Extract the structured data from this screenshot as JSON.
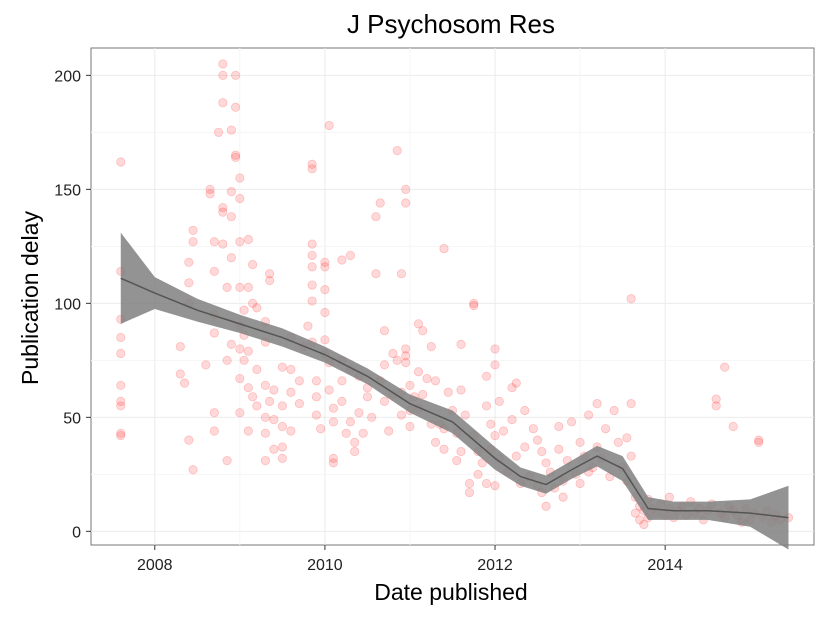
{
  "chart_data": {
    "type": "scatter",
    "title": "J Psychosom Res",
    "xlabel": "Date published",
    "ylabel": "Publication delay",
    "xlim": [
      2007.25,
      2015.75
    ],
    "ylim": [
      -6,
      212
    ],
    "x_ticks": [
      2008,
      2010,
      2012,
      2014
    ],
    "x_tick_labels": [
      "2008",
      "2010",
      "2012",
      "2014"
    ],
    "y_ticks": [
      0,
      50,
      100,
      150,
      200
    ],
    "y_tick_labels": [
      "0",
      "50",
      "100",
      "150",
      "200"
    ],
    "grid": true,
    "point_color": "#ff0000",
    "point_alpha": 0.15,
    "smooth_color": "#555555",
    "smooth_band_color": "#808080",
    "points": [
      [
        2007.6,
        162
      ],
      [
        2007.6,
        114
      ],
      [
        2007.6,
        93
      ],
      [
        2007.6,
        85
      ],
      [
        2007.6,
        78
      ],
      [
        2007.6,
        64
      ],
      [
        2007.6,
        57
      ],
      [
        2007.6,
        55
      ],
      [
        2007.6,
        43
      ],
      [
        2007.6,
        42
      ],
      [
        2008.3,
        81
      ],
      [
        2008.3,
        69
      ],
      [
        2008.35,
        65
      ],
      [
        2008.4,
        118
      ],
      [
        2008.4,
        109
      ],
      [
        2008.4,
        100
      ],
      [
        2008.4,
        40
      ],
      [
        2008.45,
        127
      ],
      [
        2008.45,
        132
      ],
      [
        2008.45,
        27
      ],
      [
        2008.6,
        73
      ],
      [
        2008.65,
        150
      ],
      [
        2008.65,
        148
      ],
      [
        2008.7,
        127
      ],
      [
        2008.7,
        114
      ],
      [
        2008.7,
        95
      ],
      [
        2008.7,
        87
      ],
      [
        2008.7,
        52
      ],
      [
        2008.7,
        44
      ],
      [
        2008.75,
        175
      ],
      [
        2008.8,
        205
      ],
      [
        2008.8,
        200
      ],
      [
        2008.8,
        188
      ],
      [
        2008.8,
        142
      ],
      [
        2008.8,
        140
      ],
      [
        2008.8,
        126
      ],
      [
        2008.85,
        107
      ],
      [
        2008.85,
        75
      ],
      [
        2008.85,
        31
      ],
      [
        2008.9,
        176
      ],
      [
        2008.9,
        149
      ],
      [
        2008.9,
        138
      ],
      [
        2008.9,
        120
      ],
      [
        2008.9,
        82
      ],
      [
        2008.95,
        200
      ],
      [
        2008.95,
        186
      ],
      [
        2008.95,
        165
      ],
      [
        2008.95,
        164
      ],
      [
        2009.0,
        155
      ],
      [
        2009.0,
        146
      ],
      [
        2009.0,
        127
      ],
      [
        2009.0,
        107
      ],
      [
        2009.0,
        90
      ],
      [
        2009.0,
        80
      ],
      [
        2009.0,
        67
      ],
      [
        2009.0,
        52
      ],
      [
        2009.05,
        97
      ],
      [
        2009.05,
        86
      ],
      [
        2009.05,
        75
      ],
      [
        2009.1,
        128
      ],
      [
        2009.1,
        107
      ],
      [
        2009.1,
        79
      ],
      [
        2009.1,
        63
      ],
      [
        2009.1,
        44
      ],
      [
        2009.15,
        117
      ],
      [
        2009.15,
        100
      ],
      [
        2009.15,
        59
      ],
      [
        2009.2,
        98
      ],
      [
        2009.2,
        71
      ],
      [
        2009.2,
        55
      ],
      [
        2009.3,
        92
      ],
      [
        2009.3,
        83
      ],
      [
        2009.3,
        64
      ],
      [
        2009.3,
        50
      ],
      [
        2009.3,
        43
      ],
      [
        2009.3,
        31
      ],
      [
        2009.35,
        113
      ],
      [
        2009.35,
        110
      ],
      [
        2009.35,
        57
      ],
      [
        2009.4,
        62
      ],
      [
        2009.4,
        49
      ],
      [
        2009.4,
        36
      ],
      [
        2009.5,
        72
      ],
      [
        2009.5,
        55
      ],
      [
        2009.5,
        46
      ],
      [
        2009.5,
        37
      ],
      [
        2009.5,
        32
      ],
      [
        2009.6,
        85
      ],
      [
        2009.6,
        71
      ],
      [
        2009.6,
        61
      ],
      [
        2009.6,
        44
      ],
      [
        2009.7,
        66
      ],
      [
        2009.7,
        56
      ],
      [
        2009.75,
        81
      ],
      [
        2009.8,
        90
      ],
      [
        2009.85,
        161
      ],
      [
        2009.85,
        159
      ],
      [
        2009.85,
        126
      ],
      [
        2009.85,
        121
      ],
      [
        2009.85,
        116
      ],
      [
        2009.85,
        108
      ],
      [
        2009.85,
        101
      ],
      [
        2009.85,
        83
      ],
      [
        2009.9,
        66
      ],
      [
        2009.9,
        59
      ],
      [
        2009.9,
        51
      ],
      [
        2009.95,
        45
      ],
      [
        2010.0,
        118
      ],
      [
        2010.0,
        116
      ],
      [
        2010.0,
        106
      ],
      [
        2010.0,
        96
      ],
      [
        2010.0,
        84
      ],
      [
        2010.0,
        78
      ],
      [
        2010.05,
        178
      ],
      [
        2010.05,
        74
      ],
      [
        2010.05,
        62
      ],
      [
        2010.1,
        54
      ],
      [
        2010.1,
        48
      ],
      [
        2010.1,
        32
      ],
      [
        2010.1,
        30
      ],
      [
        2010.2,
        119
      ],
      [
        2010.2,
        75
      ],
      [
        2010.2,
        66
      ],
      [
        2010.2,
        57
      ],
      [
        2010.25,
        43
      ],
      [
        2010.3,
        121
      ],
      [
        2010.3,
        71
      ],
      [
        2010.3,
        48
      ],
      [
        2010.35,
        39
      ],
      [
        2010.35,
        35
      ],
      [
        2010.4,
        68
      ],
      [
        2010.4,
        52
      ],
      [
        2010.45,
        43
      ],
      [
        2010.5,
        63
      ],
      [
        2010.5,
        59
      ],
      [
        2010.55,
        50
      ],
      [
        2010.6,
        138
      ],
      [
        2010.6,
        113
      ],
      [
        2010.65,
        144
      ],
      [
        2010.65,
        66
      ],
      [
        2010.7,
        88
      ],
      [
        2010.7,
        73
      ],
      [
        2010.7,
        57
      ],
      [
        2010.75,
        44
      ],
      [
        2010.8,
        78
      ],
      [
        2010.8,
        60
      ],
      [
        2010.85,
        167
      ],
      [
        2010.85,
        75
      ],
      [
        2010.9,
        113
      ],
      [
        2010.9,
        61
      ],
      [
        2010.9,
        51
      ],
      [
        2010.95,
        150
      ],
      [
        2010.95,
        144
      ],
      [
        2010.95,
        80
      ],
      [
        2010.95,
        77
      ],
      [
        2010.95,
        74
      ],
      [
        2011.0,
        64
      ],
      [
        2011.0,
        53
      ],
      [
        2011.0,
        46
      ],
      [
        2011.05,
        59
      ],
      [
        2011.1,
        91
      ],
      [
        2011.1,
        70
      ],
      [
        2011.1,
        54
      ],
      [
        2011.15,
        88
      ],
      [
        2011.15,
        60
      ],
      [
        2011.2,
        67
      ],
      [
        2011.25,
        81
      ],
      [
        2011.25,
        47
      ],
      [
        2011.3,
        66
      ],
      [
        2011.3,
        39
      ],
      [
        2011.35,
        47
      ],
      [
        2011.4,
        124
      ],
      [
        2011.4,
        45
      ],
      [
        2011.4,
        36
      ],
      [
        2011.45,
        61
      ],
      [
        2011.5,
        53
      ],
      [
        2011.55,
        43
      ],
      [
        2011.55,
        31
      ],
      [
        2011.6,
        82
      ],
      [
        2011.6,
        62
      ],
      [
        2011.6,
        35
      ],
      [
        2011.65,
        51
      ],
      [
        2011.7,
        21
      ],
      [
        2011.7,
        17
      ],
      [
        2011.75,
        100
      ],
      [
        2011.75,
        99
      ],
      [
        2011.75,
        42
      ],
      [
        2011.8,
        35
      ],
      [
        2011.8,
        25
      ],
      [
        2011.85,
        30
      ],
      [
        2011.9,
        68
      ],
      [
        2011.9,
        55
      ],
      [
        2011.9,
        21
      ],
      [
        2011.95,
        47
      ],
      [
        2011.95,
        36
      ],
      [
        2012.0,
        80
      ],
      [
        2012.0,
        73
      ],
      [
        2012.0,
        42
      ],
      [
        2012.0,
        20
      ],
      [
        2012.05,
        57
      ],
      [
        2012.05,
        32
      ],
      [
        2012.1,
        44
      ],
      [
        2012.15,
        26
      ],
      [
        2012.2,
        63
      ],
      [
        2012.2,
        49
      ],
      [
        2012.25,
        65
      ],
      [
        2012.25,
        33
      ],
      [
        2012.3,
        21
      ],
      [
        2012.35,
        53
      ],
      [
        2012.35,
        37
      ],
      [
        2012.4,
        24
      ],
      [
        2012.45,
        45
      ],
      [
        2012.5,
        40
      ],
      [
        2012.5,
        20
      ],
      [
        2012.55,
        35
      ],
      [
        2012.55,
        17
      ],
      [
        2012.6,
        30
      ],
      [
        2012.6,
        11
      ],
      [
        2012.65,
        26
      ],
      [
        2012.7,
        19
      ],
      [
        2012.75,
        46
      ],
      [
        2012.75,
        36
      ],
      [
        2012.8,
        22
      ],
      [
        2012.8,
        15
      ],
      [
        2012.85,
        31
      ],
      [
        2012.9,
        48
      ],
      [
        2012.95,
        25
      ],
      [
        2013.0,
        39
      ],
      [
        2013.0,
        21
      ],
      [
        2013.05,
        33
      ],
      [
        2013.1,
        51
      ],
      [
        2013.1,
        26
      ],
      [
        2013.15,
        28
      ],
      [
        2013.2,
        56
      ],
      [
        2013.2,
        37
      ],
      [
        2013.25,
        32
      ],
      [
        2013.3,
        45
      ],
      [
        2013.35,
        24
      ],
      [
        2013.4,
        53
      ],
      [
        2013.45,
        39
      ],
      [
        2013.5,
        28
      ],
      [
        2013.55,
        41
      ],
      [
        2013.55,
        22
      ],
      [
        2013.6,
        56
      ],
      [
        2013.6,
        102
      ],
      [
        2013.6,
        33
      ],
      [
        2013.65,
        15
      ],
      [
        2013.65,
        8
      ],
      [
        2013.7,
        11
      ],
      [
        2013.7,
        5
      ],
      [
        2013.75,
        9
      ],
      [
        2013.75,
        3
      ],
      [
        2013.8,
        14
      ],
      [
        2013.8,
        6
      ],
      [
        2013.85,
        10
      ],
      [
        2013.9,
        8
      ],
      [
        2013.95,
        12
      ],
      [
        2014.0,
        7
      ],
      [
        2014.05,
        15
      ],
      [
        2014.05,
        10
      ],
      [
        2014.1,
        6
      ],
      [
        2014.15,
        9
      ],
      [
        2014.2,
        11
      ],
      [
        2014.25,
        7
      ],
      [
        2014.3,
        13
      ],
      [
        2014.35,
        8
      ],
      [
        2014.4,
        10
      ],
      [
        2014.45,
        5
      ],
      [
        2014.5,
        9
      ],
      [
        2014.55,
        12
      ],
      [
        2014.6,
        58
      ],
      [
        2014.6,
        55
      ],
      [
        2014.65,
        8
      ],
      [
        2014.7,
        72
      ],
      [
        2014.7,
        6
      ],
      [
        2014.75,
        11
      ],
      [
        2014.8,
        46
      ],
      [
        2014.8,
        9
      ],
      [
        2014.85,
        7
      ],
      [
        2014.9,
        4
      ],
      [
        2014.95,
        10
      ],
      [
        2015.0,
        5
      ],
      [
        2015.05,
        8
      ],
      [
        2015.1,
        40
      ],
      [
        2015.1,
        39
      ],
      [
        2015.15,
        6
      ],
      [
        2015.2,
        9
      ],
      [
        2015.25,
        4
      ],
      [
        2015.3,
        7
      ],
      [
        2015.35,
        5
      ],
      [
        2015.45,
        6
      ]
    ],
    "smooth_curve": [
      [
        2007.6,
        111
      ],
      [
        2008.0,
        104.5
      ],
      [
        2008.5,
        97
      ],
      [
        2009.0,
        91
      ],
      [
        2009.5,
        85
      ],
      [
        2010.0,
        77.5
      ],
      [
        2010.5,
        68
      ],
      [
        2011.0,
        56
      ],
      [
        2011.5,
        48
      ],
      [
        2012.0,
        32
      ],
      [
        2012.3,
        24
      ],
      [
        2012.6,
        20.5
      ],
      [
        2012.9,
        27
      ],
      [
        2013.2,
        33
      ],
      [
        2013.5,
        27.5
      ],
      [
        2013.8,
        10
      ],
      [
        2014.1,
        9
      ],
      [
        2014.5,
        9
      ],
      [
        2015.0,
        8
      ],
      [
        2015.45,
        6
      ]
    ],
    "band_width": [
      [
        2007.6,
        20
      ],
      [
        2008.0,
        7
      ],
      [
        2008.5,
        5
      ],
      [
        2009.0,
        4
      ],
      [
        2009.5,
        4
      ],
      [
        2010.0,
        3.5
      ],
      [
        2010.5,
        3.5
      ],
      [
        2011.0,
        4
      ],
      [
        2011.5,
        5
      ],
      [
        2012.0,
        5
      ],
      [
        2012.3,
        4
      ],
      [
        2012.6,
        4
      ],
      [
        2012.9,
        4
      ],
      [
        2013.2,
        4.5
      ],
      [
        2013.5,
        5.5
      ],
      [
        2013.8,
        5
      ],
      [
        2014.1,
        4
      ],
      [
        2014.5,
        4
      ],
      [
        2015.0,
        6
      ],
      [
        2015.45,
        14
      ]
    ]
  }
}
